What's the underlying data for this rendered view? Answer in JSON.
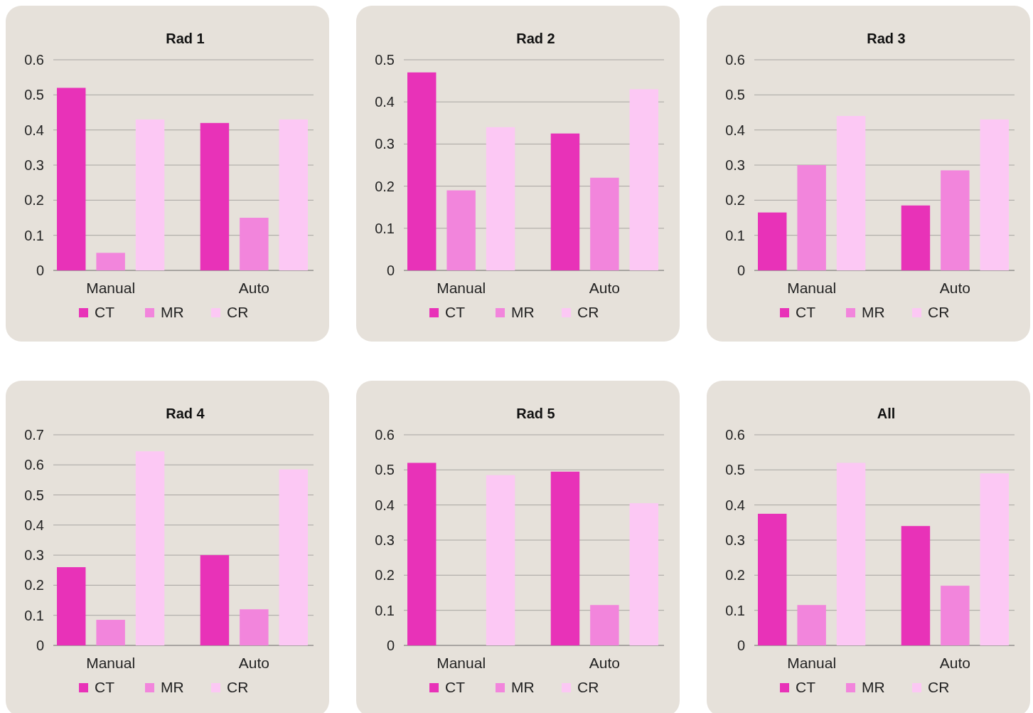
{
  "chart_data": [
    {
      "type": "bar",
      "title": "Rad 1",
      "categories": [
        "Manual",
        "Auto"
      ],
      "series": [
        {
          "name": "CT",
          "color": "#e832b8",
          "values": [
            0.52,
            0.42
          ]
        },
        {
          "name": "MR",
          "color": "#f285dc",
          "values": [
            0.05,
            0.15
          ]
        },
        {
          "name": "CR",
          "color": "#fcc8f4",
          "values": [
            0.43,
            0.43
          ]
        }
      ],
      "ylim": [
        0,
        0.6
      ],
      "yticks": [
        0,
        0.1,
        0.2,
        0.3,
        0.4,
        0.5,
        0.6
      ],
      "grid": "y",
      "legend": "bottom"
    },
    {
      "type": "bar",
      "title": "Rad 2",
      "categories": [
        "Manual",
        "Auto"
      ],
      "series": [
        {
          "name": "CT",
          "color": "#e832b8",
          "values": [
            0.47,
            0.325
          ]
        },
        {
          "name": "MR",
          "color": "#f285dc",
          "values": [
            0.19,
            0.22
          ]
        },
        {
          "name": "CR",
          "color": "#fcc8f4",
          "values": [
            0.34,
            0.43
          ]
        }
      ],
      "ylim": [
        0,
        0.5
      ],
      "yticks": [
        0,
        0.1,
        0.2,
        0.3,
        0.4,
        0.5
      ],
      "grid": "y",
      "legend": "bottom"
    },
    {
      "type": "bar",
      "title": "Rad 3",
      "categories": [
        "Manual",
        "Auto"
      ],
      "series": [
        {
          "name": "CT",
          "color": "#e832b8",
          "values": [
            0.165,
            0.185
          ]
        },
        {
          "name": "MR",
          "color": "#f285dc",
          "values": [
            0.3,
            0.285
          ]
        },
        {
          "name": "CR",
          "color": "#fcc8f4",
          "values": [
            0.44,
            0.43
          ]
        }
      ],
      "ylim": [
        0,
        0.6
      ],
      "yticks": [
        0,
        0.1,
        0.2,
        0.3,
        0.4,
        0.5,
        0.6
      ],
      "grid": "y",
      "legend": "bottom"
    },
    {
      "type": "bar",
      "title": "Rad 4",
      "categories": [
        "Manual",
        "Auto"
      ],
      "series": [
        {
          "name": "CT",
          "color": "#e832b8",
          "values": [
            0.26,
            0.3
          ]
        },
        {
          "name": "MR",
          "color": "#f285dc",
          "values": [
            0.085,
            0.12
          ]
        },
        {
          "name": "CR",
          "color": "#fcc8f4",
          "values": [
            0.645,
            0.585
          ]
        }
      ],
      "ylim": [
        0,
        0.7
      ],
      "yticks": [
        0,
        0.1,
        0.2,
        0.3,
        0.4,
        0.5,
        0.6,
        0.7
      ],
      "grid": "y",
      "legend": "bottom"
    },
    {
      "type": "bar",
      "title": "Rad 5",
      "categories": [
        "Manual",
        "Auto"
      ],
      "series": [
        {
          "name": "CT",
          "color": "#e832b8",
          "values": [
            0.52,
            0.495
          ]
        },
        {
          "name": "MR",
          "color": "#f285dc",
          "values": [
            0,
            0.115
          ]
        },
        {
          "name": "CR",
          "color": "#fcc8f4",
          "values": [
            0.485,
            0.405
          ]
        }
      ],
      "ylim": [
        0,
        0.6
      ],
      "yticks": [
        0,
        0.1,
        0.2,
        0.3,
        0.4,
        0.5,
        0.6
      ],
      "grid": "y",
      "legend": "bottom"
    },
    {
      "type": "bar",
      "title": "All",
      "categories": [
        "Manual",
        "Auto"
      ],
      "series": [
        {
          "name": "CT",
          "color": "#e832b8",
          "values": [
            0.375,
            0.34
          ]
        },
        {
          "name": "MR",
          "color": "#f285dc",
          "values": [
            0.115,
            0.17
          ]
        },
        {
          "name": "CR",
          "color": "#fcc8f4",
          "values": [
            0.52,
            0.49
          ]
        }
      ],
      "ylim": [
        0,
        0.6
      ],
      "yticks": [
        0,
        0.1,
        0.2,
        0.3,
        0.4,
        0.5,
        0.6
      ],
      "grid": "y",
      "legend": "bottom"
    }
  ]
}
